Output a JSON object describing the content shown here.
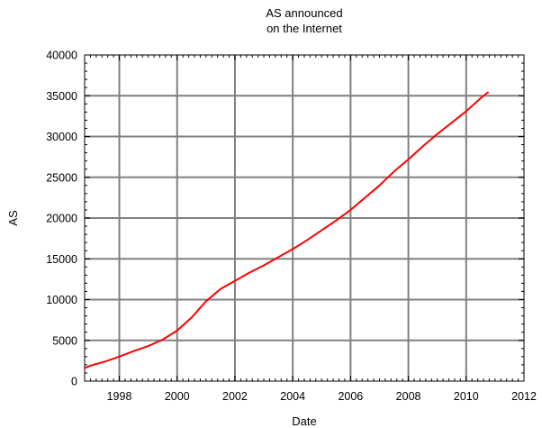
{
  "chart_data": {
    "type": "line",
    "title_lines": [
      "AS announced",
      "on the Internet"
    ],
    "xlabel": "Date",
    "ylabel": "AS",
    "xlim": [
      1996.8,
      2012.0
    ],
    "ylim": [
      0,
      40000
    ],
    "x_ticks": [
      1998,
      2000,
      2002,
      2004,
      2006,
      2008,
      2010,
      2012
    ],
    "y_ticks": [
      0,
      5000,
      10000,
      15000,
      20000,
      25000,
      30000,
      35000,
      40000
    ],
    "grid": true,
    "legend": "none",
    "series": [
      {
        "color": "#ff0000",
        "x": [
          1996.8,
          1997.0,
          1997.5,
          1998.0,
          1998.5,
          1999.0,
          1999.5,
          2000.0,
          2000.5,
          2001.0,
          2001.5,
          2002.0,
          2002.5,
          2003.0,
          2003.5,
          2004.0,
          2004.5,
          2005.0,
          2005.5,
          2006.0,
          2006.5,
          2007.0,
          2007.5,
          2008.0,
          2008.5,
          2009.0,
          2009.5,
          2010.0,
          2010.5,
          2010.75
        ],
        "y": [
          1600,
          1900,
          2400,
          3000,
          3700,
          4300,
          5100,
          6200,
          7800,
          9800,
          11300,
          12300,
          13300,
          14200,
          15200,
          16200,
          17300,
          18500,
          19700,
          21000,
          22500,
          24000,
          25700,
          27200,
          28800,
          30300,
          31700,
          33100,
          34700,
          35400
        ]
      }
    ]
  }
}
